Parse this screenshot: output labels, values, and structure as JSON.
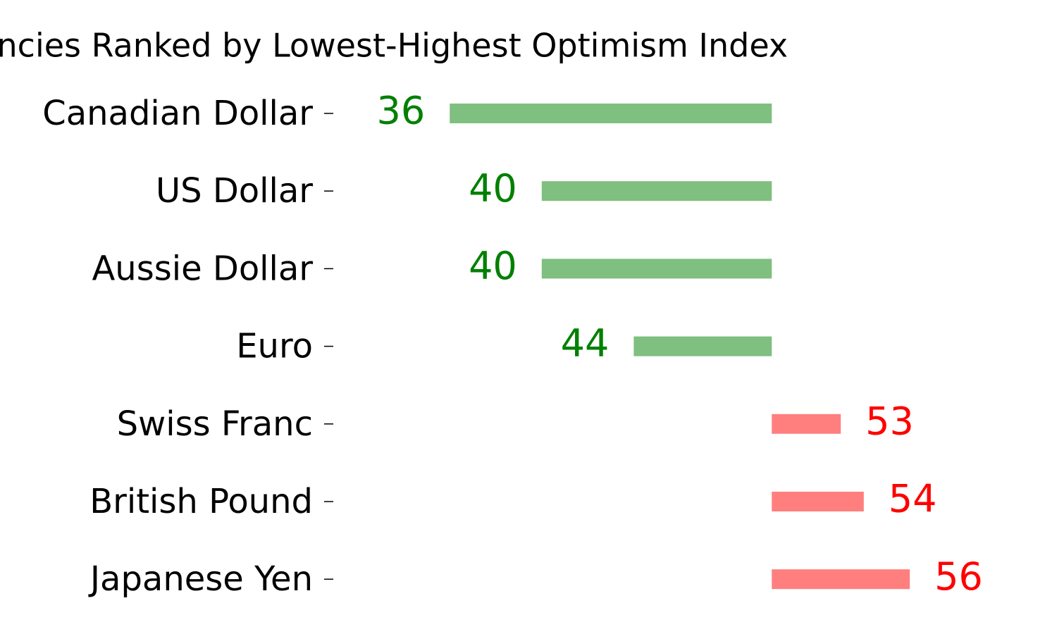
{
  "chart_data": {
    "type": "diverging-bar",
    "title": "Currencies Ranked by Lowest-Highest Optimism Index",
    "categories": [
      "Canadian Dollar",
      "US Dollar",
      "Aussie Dollar",
      "Euro",
      "Swiss Franc",
      "British Pound",
      "Japanese Yen"
    ],
    "values": [
      36,
      40,
      40,
      44,
      53,
      54,
      56
    ],
    "center": 50,
    "xlim": [
      31,
      62.4
    ],
    "colors": [
      "#7fbf7f",
      "#7fbf7f",
      "#7fbf7f",
      "#7fbf7f",
      "#ff7f7f",
      "#ff7f7f",
      "#ff7f7f"
    ],
    "value_label_colors": [
      "#008000",
      "#008000",
      "#008000",
      "#008000",
      "#ff0000",
      "#ff0000",
      "#ff0000"
    ]
  }
}
